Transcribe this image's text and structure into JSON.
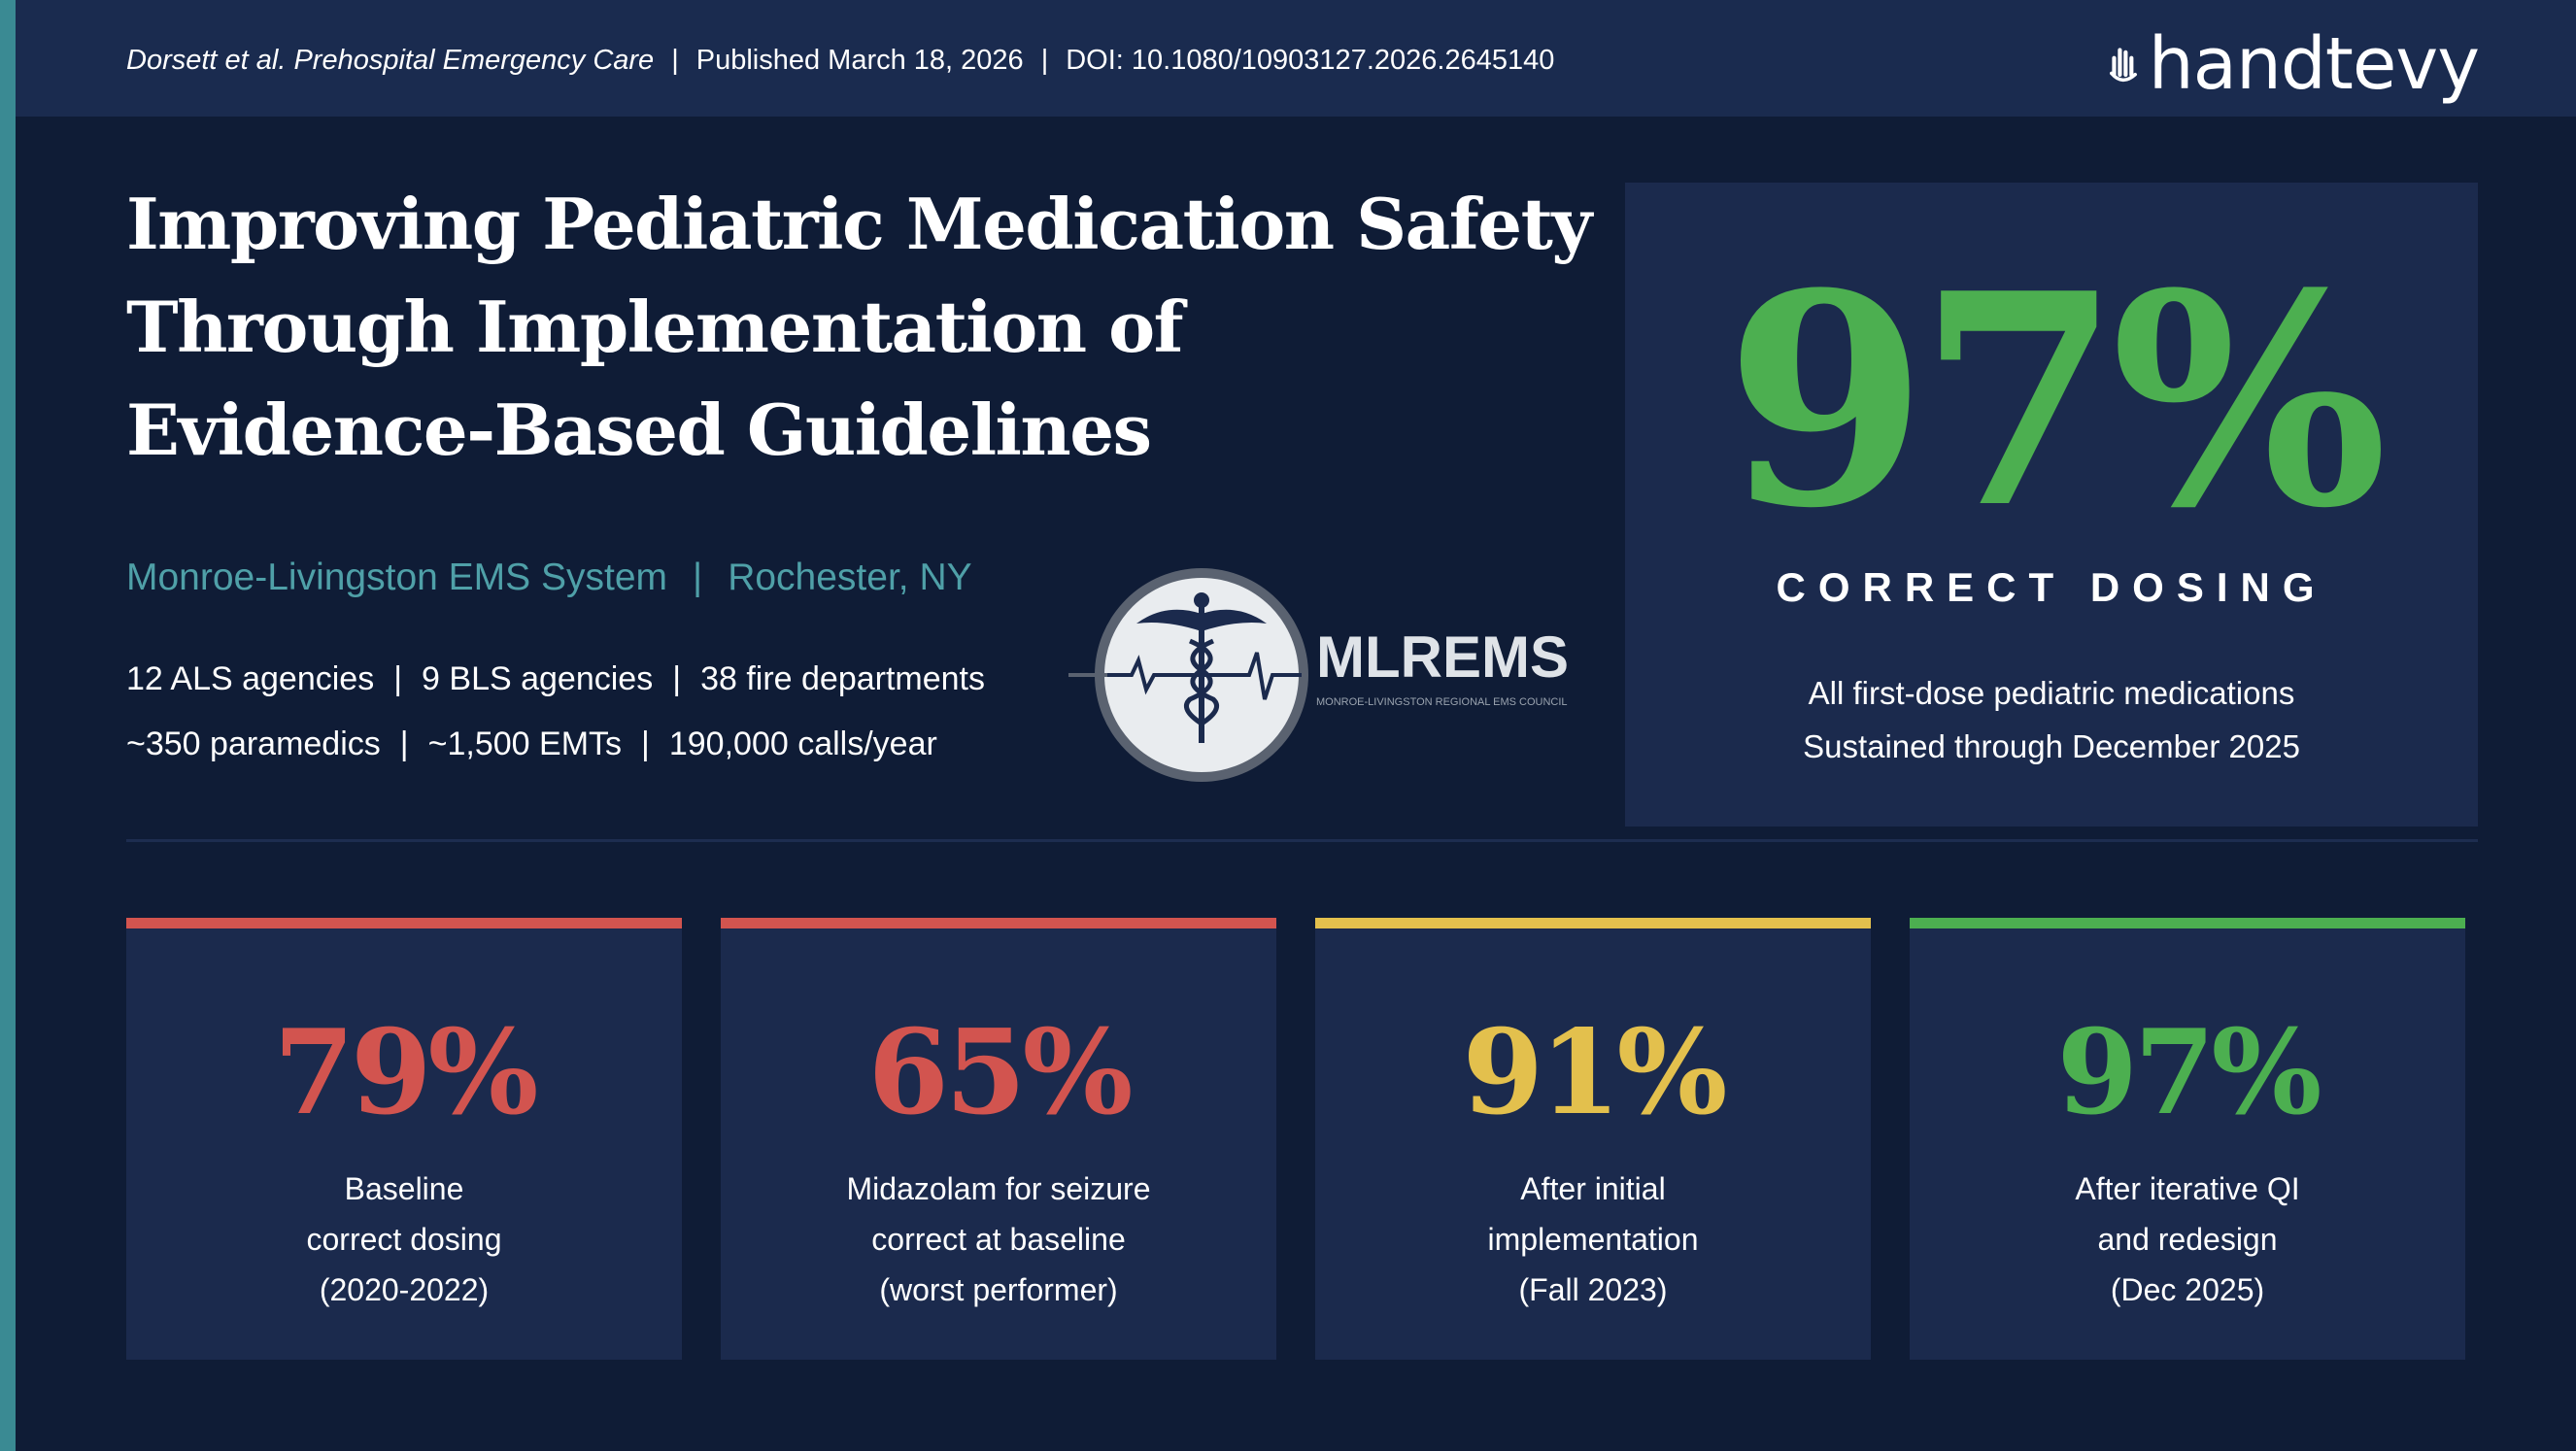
{
  "header": {
    "citation_authors_journal": "Dorsett et al. Prehospital Emergency Care",
    "published": "Published March 18, 2026",
    "doi": "DOI: 10.1080/10903127.2026.2645140",
    "separator": "|",
    "brand_name": "handtevy",
    "brand_icon": "handtevy-hand-icon"
  },
  "title_lines": [
    "Improving Pediatric Medication Safety",
    "Through Implementation of",
    "Evidence-Based Guidelines"
  ],
  "system": {
    "name": "Monroe-Livingston EMS System",
    "location": "Rochester, NY"
  },
  "stats_line_1": [
    "12 ALS agencies",
    "9 BLS agencies",
    "38 fire departments"
  ],
  "stats_line_2": [
    "~350 paramedics",
    "~1,500 EMTs",
    "190,000 calls/year"
  ],
  "mlrems_logo": {
    "name": "MLREMS",
    "subtitle": "MONROE-LIVINGSTON REGIONAL EMS COUNCIL",
    "icon": "caduceus-icon"
  },
  "hero": {
    "value": "97%",
    "label": "CORRECT DOSING",
    "desc_line_1": "All first-dose pediatric medications",
    "desc_line_2": "Sustained through December 2025",
    "color": "#4caf50"
  },
  "cards": [
    {
      "value": "79%",
      "lines": [
        "Baseline",
        "correct dosing",
        "(2020-2022)"
      ],
      "color": "#d2544f"
    },
    {
      "value": "65%",
      "lines": [
        "Midazolam for seizure",
        "correct at baseline",
        "(worst performer)"
      ],
      "color": "#d2544f"
    },
    {
      "value": "91%",
      "lines": [
        "After initial",
        "implementation",
        "(Fall 2023)"
      ],
      "color": "#e3c04d"
    },
    {
      "value": "97%",
      "lines": [
        "After iterative QI",
        "and redesign",
        "(Dec 2025)"
      ],
      "color": "#4caf50"
    }
  ]
}
